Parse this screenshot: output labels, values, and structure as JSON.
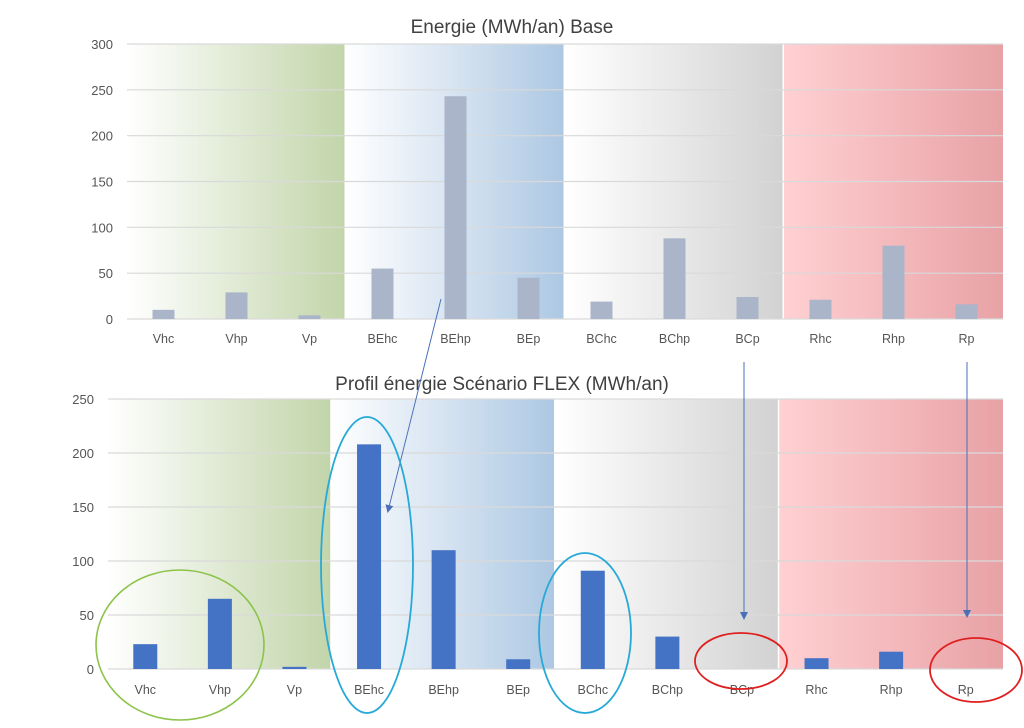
{
  "colors": {
    "base_bar": "#aab5c9",
    "flex_bar": "#4472c4",
    "band_green": "#c2d5aa",
    "band_blue": "#adc8e3",
    "band_gray": "#d2d2d2",
    "band_red_start": "#ffd0d2",
    "band_red_end": "#e8a2a6",
    "arrow": "#4a6fb8",
    "circle_green": "#8cc34a",
    "circle_cyan": "#27a9d8",
    "circle_red": "#e02020"
  },
  "chart_data": [
    {
      "type": "bar",
      "title": "Energie (MWh/an) Base",
      "categories": [
        "Vhc",
        "Vhp",
        "Vp",
        "BEhc",
        "BEhp",
        "BEp",
        "BChc",
        "BChp",
        "BCp",
        "Rhc",
        "Rhp",
        "Rp"
      ],
      "values": [
        10,
        29,
        4,
        55,
        243,
        45,
        19,
        88,
        24,
        21,
        80,
        16
      ],
      "ylim": [
        0,
        300
      ],
      "yticks": [
        "0",
        "50",
        "100",
        "150",
        "200",
        "250",
        "300"
      ],
      "grid": true,
      "xlabel": "",
      "ylabel": ""
    },
    {
      "type": "bar",
      "title": "Profil énergie Scénario FLEX (MWh/an)",
      "categories": [
        "Vhc",
        "Vhp",
        "Vp",
        "BEhc",
        "BEhp",
        "BEp",
        "BChc",
        "BChp",
        "BCp",
        "Rhc",
        "Rhp",
        "Rp"
      ],
      "values": [
        23,
        65,
        2,
        208,
        110,
        9,
        91,
        30,
        0,
        10,
        16,
        0
      ],
      "ylim": [
        0,
        250
      ],
      "yticks": [
        "0",
        "50",
        "100",
        "150",
        "200",
        "250"
      ],
      "grid": true,
      "xlabel": "",
      "ylabel": ""
    }
  ]
}
